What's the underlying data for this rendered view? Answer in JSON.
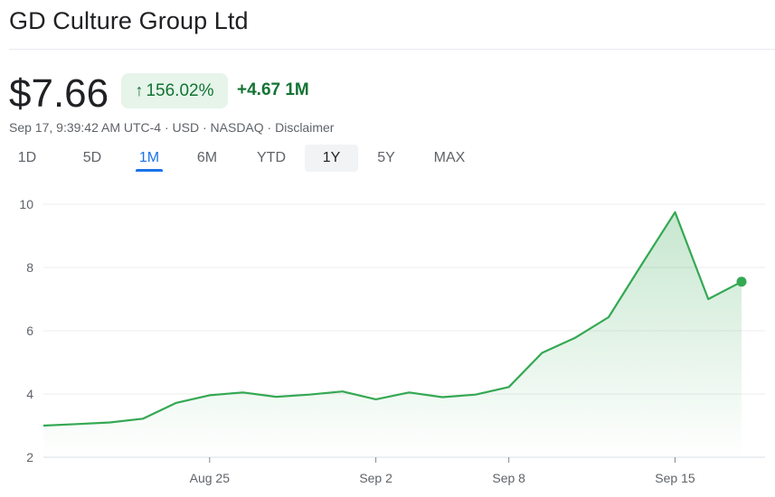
{
  "header": {
    "title": "GD Culture Group Ltd",
    "price": "$7.66",
    "change_arrow": "↑",
    "change_pct": "156.02%",
    "change_abs": "+4.67 1M",
    "meta": "Sep 17, 9:39:42 AM UTC-4 · USD · NASDAQ · Disclaimer"
  },
  "tabs": [
    {
      "label": "1D"
    },
    {
      "label": "5D"
    },
    {
      "label": "1M"
    },
    {
      "label": "6M"
    },
    {
      "label": "YTD"
    },
    {
      "label": "1Y"
    },
    {
      "label": "5Y"
    },
    {
      "label": "MAX"
    }
  ],
  "colors": {
    "accent": "#1a73e8",
    "line": "#34a853",
    "positive": "#137333",
    "badge_bg": "#e6f4ea"
  },
  "chart_data": {
    "type": "area",
    "x": [
      "Aug 18",
      "Aug 19",
      "Aug 20",
      "Aug 21",
      "Aug 22",
      "Aug 25",
      "Aug 26",
      "Aug 27",
      "Aug 28",
      "Aug 29",
      "Sep 2",
      "Sep 3",
      "Sep 4",
      "Sep 5",
      "Sep 8",
      "Sep 9",
      "Sep 10",
      "Sep 11",
      "Sep 12",
      "Sep 15",
      "Sep 16",
      "Sep 17"
    ],
    "series": [
      {
        "values": [
          3.0,
          3.05,
          3.1,
          3.22,
          3.72,
          3.96,
          4.05,
          3.91,
          3.98,
          4.08,
          3.83,
          4.05,
          3.9,
          3.98,
          4.22,
          5.3,
          5.78,
          6.43,
          8.1,
          9.75,
          7.0,
          7.55
        ]
      }
    ],
    "ylim": [
      2,
      10
    ],
    "yticks": [
      "2",
      "4",
      "6",
      "8",
      "10"
    ],
    "xticks": [
      {
        "label": "Aug 25",
        "at": "Aug 25"
      },
      {
        "label": "Sep 2",
        "at": "Sep 2"
      },
      {
        "label": "Sep 8",
        "at": "Sep 8"
      },
      {
        "label": "Sep 15",
        "at": "Sep 15"
      }
    ],
    "grid": true
  }
}
